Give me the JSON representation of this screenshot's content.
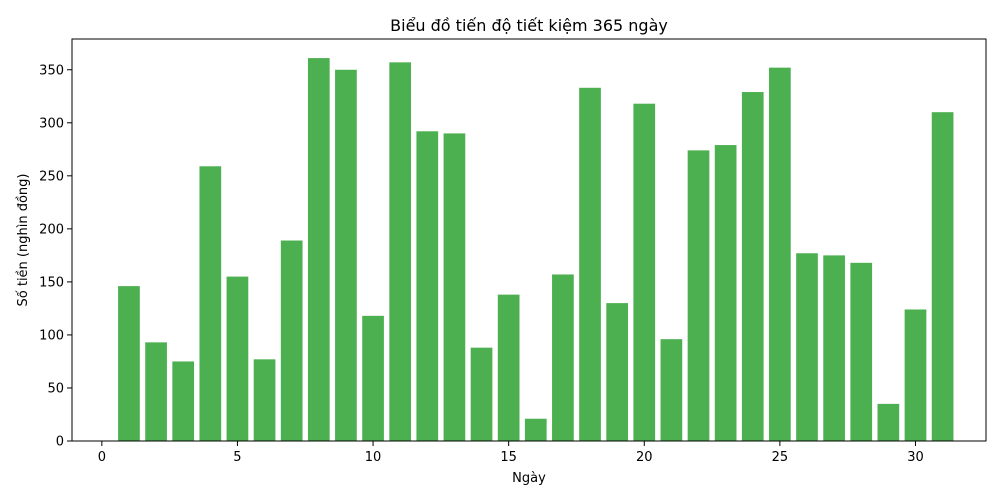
{
  "chart_data": {
    "type": "bar",
    "title": "Biểu đồ tiến độ tiết kiệm 365 ngày",
    "xlabel": "Ngày",
    "ylabel": "Số tiền (nghìn đồng)",
    "x": [
      1,
      2,
      3,
      4,
      5,
      6,
      7,
      8,
      9,
      10,
      11,
      12,
      13,
      14,
      15,
      16,
      17,
      18,
      19,
      20,
      21,
      22,
      23,
      24,
      25,
      26,
      27,
      28,
      29,
      30,
      31
    ],
    "values": [
      146,
      93,
      75,
      259,
      155,
      77,
      189,
      361,
      350,
      118,
      357,
      292,
      290,
      88,
      138,
      21,
      157,
      333,
      130,
      318,
      96,
      274,
      279,
      329,
      352,
      177,
      175,
      168,
      35,
      124,
      310
    ],
    "xlim": [
      -1.1,
      32.6
    ],
    "ylim": [
      0,
      379
    ],
    "xticks": [
      0,
      5,
      10,
      15,
      20,
      25,
      30
    ],
    "yticks": [
      0,
      50,
      100,
      150,
      200,
      250,
      300,
      350
    ],
    "bar_color": "#4caf50",
    "grid": false
  }
}
